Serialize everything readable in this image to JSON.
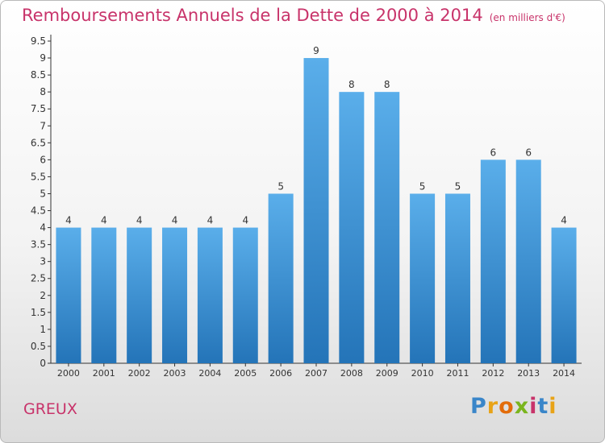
{
  "header": {
    "title": "Remboursements Annuels de la Dette de 2000 à 2014",
    "unit": "(en milliers d'€)"
  },
  "footer": {
    "place": "GREUX",
    "logo": "Proxiti"
  },
  "chart_data": {
    "type": "bar",
    "title": "Remboursements Annuels de la Dette de 2000 à 2014",
    "subtitle": "(en milliers d'€)",
    "xlabel": "",
    "ylabel": "",
    "categories": [
      "2000",
      "2001",
      "2002",
      "2003",
      "2004",
      "2005",
      "2006",
      "2007",
      "2008",
      "2009",
      "2010",
      "2011",
      "2012",
      "2013",
      "2014"
    ],
    "values": [
      4,
      4,
      4,
      4,
      4,
      4,
      5,
      9,
      8,
      8,
      5,
      5,
      6,
      6,
      4
    ],
    "data_labels": [
      "4",
      "4",
      "4",
      "4",
      "4",
      "4",
      "5",
      "9",
      "8",
      "8",
      "5",
      "5",
      "6",
      "6",
      "4"
    ],
    "ylim": [
      0,
      9.5
    ],
    "yticks": [
      0,
      0.5,
      1,
      1.5,
      2,
      2.5,
      3,
      3.5,
      4,
      4.5,
      5,
      5.5,
      6,
      6.5,
      7,
      7.5,
      8,
      8.5,
      9,
      9.5
    ],
    "ytick_labels": [
      "0",
      "0.5",
      "1",
      "1.5",
      "2",
      "2.5",
      "3",
      "3.5",
      "4",
      "4.5",
      "5",
      "5.5",
      "6",
      "6.5",
      "7",
      "7.5",
      "8",
      "8.5",
      "9",
      "9.5"
    ],
    "grid": false,
    "legend": "none",
    "colors": {
      "bar_top": "#5aaeea",
      "bar_bottom": "#2474b8",
      "title": "#c8336a",
      "axis": "#333333"
    }
  }
}
